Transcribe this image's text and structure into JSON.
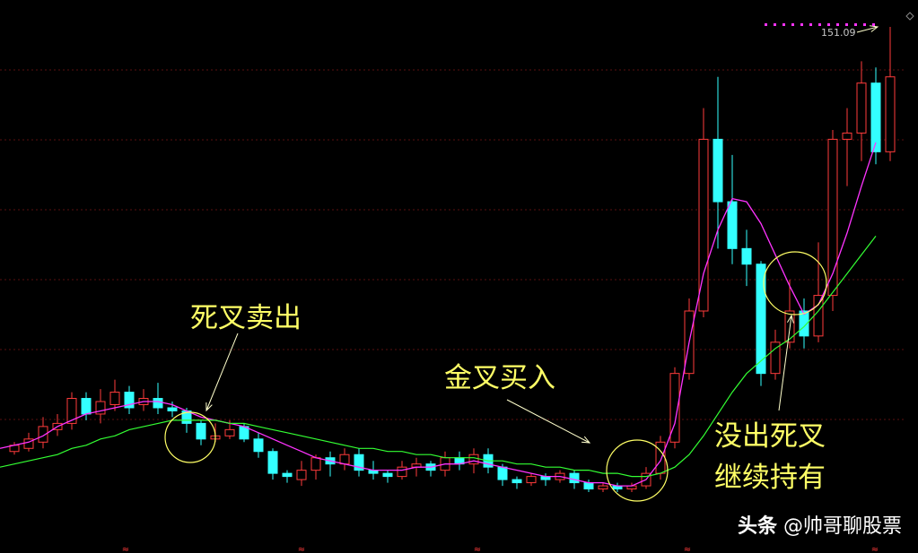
{
  "header": {
    "title_stub": "",
    "tabs": [
      "",
      "",
      "",
      "",
      "",
      "",
      ""
    ]
  },
  "annotations": {
    "death_cross_sell": "死叉卖出",
    "golden_cross_buy": "金叉买入",
    "no_death_cross_line1": "没出死叉",
    "no_death_cross_line2": "继续持有"
  },
  "watermark": {
    "platform": "头条",
    "author": "@帅哥聊股票"
  },
  "chart_data": {
    "type": "candlestick",
    "max_price_label": "151.09",
    "y_scale": "price",
    "grid": "horizontal dotted",
    "colors": {
      "up": "#ff3b3b",
      "down": "#33ffff",
      "ma_short": "#ff33ff",
      "ma_long": "#33ff33",
      "highlight": "#ffff66"
    },
    "candles": [
      [
        15,
        17,
        14,
        18
      ],
      [
        16,
        19,
        15,
        21
      ],
      [
        18,
        23,
        16,
        26
      ],
      [
        22,
        24,
        20,
        27
      ],
      [
        24,
        32,
        22,
        34
      ],
      [
        32,
        27,
        25,
        34
      ],
      [
        27,
        31,
        24,
        35
      ],
      [
        30,
        34,
        28,
        38
      ],
      [
        34,
        29,
        27,
        36
      ],
      [
        30,
        32,
        28,
        35
      ],
      [
        32,
        29,
        27,
        37
      ],
      [
        29,
        28,
        26,
        31
      ],
      [
        28,
        24,
        21,
        29
      ],
      [
        24,
        19,
        17,
        25
      ],
      [
        19,
        20,
        18,
        24
      ],
      [
        20,
        22,
        19,
        25
      ],
      [
        23,
        19,
        18,
        24
      ],
      [
        19,
        15,
        13,
        21
      ],
      [
        15,
        8,
        6,
        16
      ],
      [
        8,
        7,
        5,
        9
      ],
      [
        6,
        9,
        4,
        12
      ],
      [
        9,
        13,
        6,
        14
      ],
      [
        13,
        11,
        7,
        15
      ],
      [
        11,
        14,
        9,
        16
      ],
      [
        14,
        9,
        7,
        16
      ],
      [
        9,
        8,
        6,
        12
      ],
      [
        8,
        7,
        5,
        9
      ],
      [
        7,
        10,
        6,
        12
      ],
      [
        10,
        11,
        7,
        13
      ],
      [
        11,
        9,
        7,
        12
      ],
      [
        9,
        13,
        7,
        15
      ],
      [
        13,
        11,
        9,
        15
      ],
      [
        11,
        14,
        8,
        16
      ],
      [
        14,
        10,
        8,
        16
      ],
      [
        10,
        6,
        4,
        11
      ],
      [
        6,
        5,
        3,
        7
      ],
      [
        5,
        7,
        4,
        8
      ],
      [
        7,
        6,
        4,
        8
      ],
      [
        6,
        8,
        5,
        9
      ],
      [
        8,
        5,
        3,
        9
      ],
      [
        5,
        3,
        2,
        6
      ],
      [
        3,
        4,
        2,
        5
      ],
      [
        4,
        3,
        2,
        5
      ],
      [
        3,
        4,
        2,
        5
      ],
      [
        4,
        8,
        3,
        10
      ],
      [
        8,
        18,
        6,
        20
      ],
      [
        18,
        40,
        16,
        42
      ],
      [
        40,
        60,
        38,
        64
      ],
      [
        60,
        115,
        58,
        125
      ],
      [
        115,
        95,
        80,
        135
      ],
      [
        95,
        80,
        75,
        110
      ],
      [
        80,
        75,
        68,
        86
      ],
      [
        75,
        40,
        36,
        76
      ],
      [
        40,
        50,
        38,
        54
      ],
      [
        50,
        60,
        48,
        70
      ],
      [
        60,
        52,
        48,
        64
      ],
      [
        52,
        65,
        50,
        82
      ],
      [
        65,
        115,
        60,
        118
      ],
      [
        115,
        117,
        100,
        125
      ],
      [
        117,
        133,
        108,
        140
      ],
      [
        133,
        111,
        107,
        138
      ],
      [
        111,
        135,
        108,
        151
      ]
    ],
    "ma_short": [
      16,
      17,
      18,
      20,
      23,
      25,
      27,
      28,
      29,
      30,
      31,
      31,
      30,
      28,
      26,
      25,
      24,
      23,
      21,
      19,
      17,
      15,
      13,
      12,
      11,
      10,
      9,
      9,
      9,
      10,
      10,
      11,
      11,
      12,
      11,
      10,
      9,
      8,
      7,
      7,
      6,
      5,
      5,
      4,
      4,
      6,
      12,
      24,
      50,
      72,
      86,
      96,
      95,
      88,
      78,
      68,
      59,
      62,
      72,
      85,
      100,
      114
    ],
    "ma_long": [
      10,
      11,
      12,
      13,
      14,
      16,
      17,
      19,
      20,
      22,
      23,
      24,
      25,
      25,
      25,
      25,
      24,
      24,
      23,
      22,
      21,
      20,
      19,
      18,
      17,
      16,
      16,
      15,
      15,
      14,
      14,
      13,
      13,
      13,
      12,
      12,
      11,
      11,
      10,
      10,
      9,
      9,
      8,
      8,
      7,
      7,
      8,
      10,
      14,
      20,
      27,
      34,
      40,
      44,
      48,
      51,
      55,
      60,
      66,
      72,
      78,
      84
    ],
    "annotation_circles": [
      {
        "label": "死叉卖出",
        "candle_index": 12
      },
      {
        "label": "金叉买入",
        "candle_index": 46
      },
      {
        "label": "没出死叉",
        "candle_index": 56
      }
    ]
  }
}
